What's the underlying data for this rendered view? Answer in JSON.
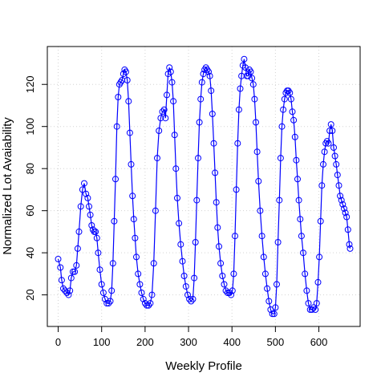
{
  "chart_data": {
    "type": "line",
    "title": "",
    "xlabel": "Weekly Profile",
    "ylabel": "Normalized Lot Avaiability",
    "xlim": [
      -25,
      695
    ],
    "ylim": [
      5,
      138
    ],
    "x_ticks": [
      0,
      100,
      200,
      300,
      400,
      500,
      600
    ],
    "y_ticks": [
      20,
      40,
      60,
      80,
      100,
      120
    ],
    "x_tick_labels": [
      "0",
      "100",
      "200",
      "300",
      "400",
      "500",
      "600"
    ],
    "y_tick_labels": [
      "20",
      "40",
      "60",
      "80",
      "100",
      "120"
    ],
    "grid": true,
    "legend": "none",
    "series_color": "#0000ff",
    "marker": "open-circle",
    "series": [
      {
        "points": [
          [
            0,
            37
          ],
          [
            5,
            33
          ],
          [
            8,
            27
          ],
          [
            12,
            23
          ],
          [
            16,
            22
          ],
          [
            20,
            21
          ],
          [
            24,
            20
          ],
          [
            27,
            22
          ],
          [
            30,
            28
          ],
          [
            34,
            31
          ],
          [
            38,
            31
          ],
          [
            42,
            34
          ],
          [
            45,
            42
          ],
          [
            48,
            50
          ],
          [
            52,
            62
          ],
          [
            56,
            70
          ],
          [
            60,
            73
          ],
          [
            64,
            68
          ],
          [
            68,
            66
          ],
          [
            71,
            62
          ],
          [
            74,
            58
          ],
          [
            77,
            53
          ],
          [
            80,
            51
          ],
          [
            83,
            50
          ],
          [
            86,
            50
          ],
          [
            89,
            47
          ],
          [
            92,
            40
          ],
          [
            96,
            32
          ],
          [
            100,
            25
          ],
          [
            104,
            21
          ],
          [
            108,
            18
          ],
          [
            112,
            16
          ],
          [
            116,
            16
          ],
          [
            120,
            17
          ],
          [
            123,
            22
          ],
          [
            126,
            35
          ],
          [
            129,
            55
          ],
          [
            132,
            75
          ],
          [
            135,
            100
          ],
          [
            138,
            114
          ],
          [
            141,
            120
          ],
          [
            144,
            121
          ],
          [
            147,
            122
          ],
          [
            150,
            125
          ],
          [
            153,
            127
          ],
          [
            156,
            126
          ],
          [
            159,
            122
          ],
          [
            162,
            112
          ],
          [
            165,
            97
          ],
          [
            168,
            82
          ],
          [
            171,
            67
          ],
          [
            174,
            56
          ],
          [
            177,
            47
          ],
          [
            180,
            38
          ],
          [
            184,
            30
          ],
          [
            188,
            25
          ],
          [
            192,
            21
          ],
          [
            196,
            18
          ],
          [
            200,
            16
          ],
          [
            204,
            15
          ],
          [
            208,
            15
          ],
          [
            212,
            16
          ],
          [
            216,
            20
          ],
          [
            220,
            35
          ],
          [
            224,
            60
          ],
          [
            228,
            85
          ],
          [
            232,
            98
          ],
          [
            236,
            104
          ],
          [
            240,
            107
          ],
          [
            244,
            108
          ],
          [
            247,
            104
          ],
          [
            250,
            115
          ],
          [
            253,
            125
          ],
          [
            256,
            128
          ],
          [
            259,
            126
          ],
          [
            262,
            121
          ],
          [
            265,
            112
          ],
          [
            268,
            96
          ],
          [
            271,
            80
          ],
          [
            274,
            66
          ],
          [
            278,
            54
          ],
          [
            282,
            44
          ],
          [
            286,
            36
          ],
          [
            290,
            29
          ],
          [
            294,
            24
          ],
          [
            298,
            20
          ],
          [
            302,
            18
          ],
          [
            306,
            17
          ],
          [
            310,
            18
          ],
          [
            313,
            28
          ],
          [
            316,
            45
          ],
          [
            319,
            65
          ],
          [
            322,
            85
          ],
          [
            325,
            102
          ],
          [
            328,
            113
          ],
          [
            331,
            121
          ],
          [
            334,
            125
          ],
          [
            337,
            127
          ],
          [
            340,
            128
          ],
          [
            343,
            127
          ],
          [
            346,
            126
          ],
          [
            349,
            124
          ],
          [
            352,
            117
          ],
          [
            355,
            106
          ],
          [
            358,
            92
          ],
          [
            361,
            78
          ],
          [
            364,
            64
          ],
          [
            367,
            52
          ],
          [
            370,
            43
          ],
          [
            374,
            35
          ],
          [
            378,
            29
          ],
          [
            382,
            25
          ],
          [
            386,
            22
          ],
          [
            390,
            21
          ],
          [
            394,
            21
          ],
          [
            398,
            20
          ],
          [
            401,
            22
          ],
          [
            404,
            30
          ],
          [
            407,
            48
          ],
          [
            410,
            70
          ],
          [
            413,
            92
          ],
          [
            416,
            108
          ],
          [
            419,
            118
          ],
          [
            422,
            124
          ],
          [
            425,
            129
          ],
          [
            428,
            132
          ],
          [
            431,
            128
          ],
          [
            434,
            124
          ],
          [
            437,
            124
          ],
          [
            440,
            127
          ],
          [
            443,
            126
          ],
          [
            446,
            123
          ],
          [
            449,
            120
          ],
          [
            452,
            113
          ],
          [
            455,
            102
          ],
          [
            458,
            88
          ],
          [
            461,
            74
          ],
          [
            465,
            60
          ],
          [
            469,
            48
          ],
          [
            473,
            38
          ],
          [
            477,
            30
          ],
          [
            481,
            23
          ],
          [
            485,
            17
          ],
          [
            489,
            13
          ],
          [
            493,
            11
          ],
          [
            497,
            11
          ],
          [
            500,
            14
          ],
          [
            503,
            25
          ],
          [
            506,
            45
          ],
          [
            509,
            65
          ],
          [
            512,
            85
          ],
          [
            515,
            100
          ],
          [
            518,
            108
          ],
          [
            521,
            113
          ],
          [
            524,
            116
          ],
          [
            527,
            117
          ],
          [
            530,
            117
          ],
          [
            533,
            116
          ],
          [
            536,
            113
          ],
          [
            539,
            107
          ],
          [
            542,
            103
          ],
          [
            545,
            95
          ],
          [
            548,
            84
          ],
          [
            551,
            75
          ],
          [
            554,
            65
          ],
          [
            557,
            56
          ],
          [
            560,
            48
          ],
          [
            564,
            40
          ],
          [
            568,
            30
          ],
          [
            572,
            22
          ],
          [
            576,
            16
          ],
          [
            580,
            13
          ],
          [
            584,
            13
          ],
          [
            588,
            14
          ],
          [
            592,
            13
          ],
          [
            595,
            16
          ],
          [
            598,
            26
          ],
          [
            601,
            38
          ],
          [
            604,
            55
          ],
          [
            607,
            72
          ],
          [
            610,
            82
          ],
          [
            613,
            88
          ],
          [
            616,
            92
          ],
          [
            619,
            93
          ],
          [
            622,
            92
          ],
          [
            625,
            98
          ],
          [
            628,
            101
          ],
          [
            631,
            98
          ],
          [
            634,
            90
          ],
          [
            637,
            86
          ],
          [
            640,
            82
          ],
          [
            643,
            77
          ],
          [
            646,
            72
          ],
          [
            649,
            67
          ],
          [
            652,
            65
          ],
          [
            655,
            63
          ],
          [
            658,
            61
          ],
          [
            661,
            59
          ],
          [
            664,
            57
          ],
          [
            667,
            51
          ],
          [
            670,
            44
          ],
          [
            672,
            42
          ]
        ]
      }
    ]
  }
}
